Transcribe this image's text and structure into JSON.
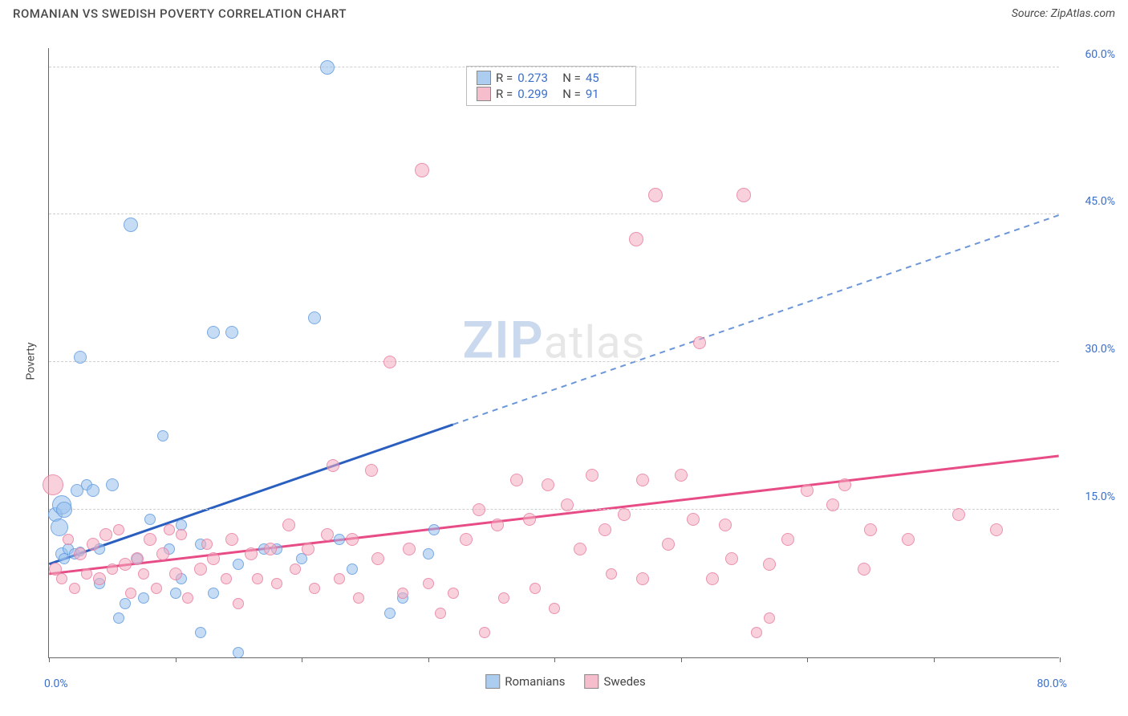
{
  "header": {
    "title": "ROMANIAN VS SWEDISH POVERTY CORRELATION CHART",
    "source": "Source: ZipAtlas.com"
  },
  "chart": {
    "type": "scatter",
    "ylabel": "Poverty",
    "xlim": [
      0,
      80
    ],
    "ylim": [
      0,
      62
    ],
    "xticks": [
      0,
      10,
      20,
      30,
      40,
      50,
      60,
      70,
      80
    ],
    "yticks": [
      15,
      30,
      45,
      60
    ],
    "ytick_labels": [
      "15.0%",
      "30.0%",
      "45.0%",
      "60.0%"
    ],
    "xmin_label": "0.0%",
    "xmax_label": "80.0%",
    "grid_color": "#d0d0d0",
    "axis_color": "#666666",
    "tick_label_color": "#3b6fc9",
    "watermark": {
      "part1": "ZIP",
      "part2": "atlas"
    },
    "series": [
      {
        "name": "Romanians",
        "color_fill": "rgba(151,192,236,0.55)",
        "color_border": "rgba(90,150,220,0.7)",
        "swatch_color": "rgba(151,192,236,0.8)",
        "R": "0.273",
        "N": "45",
        "trend": {
          "x1": 0,
          "y1": 9.5,
          "x2": 80,
          "y2": 45,
          "solid_until_x": 32,
          "color_solid": "#2a5fc0",
          "color_dash": "#6b96d8",
          "width": 3
        },
        "points": [
          {
            "x": 0.5,
            "y": 14.5,
            "r": 9
          },
          {
            "x": 0.8,
            "y": 13.2,
            "r": 11
          },
          {
            "x": 1.0,
            "y": 15.5,
            "r": 12
          },
          {
            "x": 1.2,
            "y": 15.0,
            "r": 10
          },
          {
            "x": 1.0,
            "y": 10.5,
            "r": 8
          },
          {
            "x": 1.2,
            "y": 10.0,
            "r": 7
          },
          {
            "x": 1.5,
            "y": 11.0,
            "r": 7
          },
          {
            "x": 2.0,
            "y": 10.5,
            "r": 7
          },
          {
            "x": 2.2,
            "y": 17.0,
            "r": 8
          },
          {
            "x": 2.5,
            "y": 10.8,
            "r": 6
          },
          {
            "x": 2.5,
            "y": 30.5,
            "r": 8
          },
          {
            "x": 3.0,
            "y": 17.5,
            "r": 7
          },
          {
            "x": 3.5,
            "y": 17.0,
            "r": 8
          },
          {
            "x": 4.0,
            "y": 7.5,
            "r": 7
          },
          {
            "x": 4.0,
            "y": 11.0,
            "r": 7
          },
          {
            "x": 5.0,
            "y": 17.5,
            "r": 8
          },
          {
            "x": 5.5,
            "y": 4.0,
            "r": 7
          },
          {
            "x": 6.0,
            "y": 5.5,
            "r": 7
          },
          {
            "x": 6.5,
            "y": 44.0,
            "r": 9
          },
          {
            "x": 7.0,
            "y": 10.0,
            "r": 7
          },
          {
            "x": 7.5,
            "y": 6.0,
            "r": 7
          },
          {
            "x": 8.0,
            "y": 14.0,
            "r": 7
          },
          {
            "x": 9.0,
            "y": 22.5,
            "r": 7
          },
          {
            "x": 9.5,
            "y": 11.0,
            "r": 7
          },
          {
            "x": 10.0,
            "y": 6.5,
            "r": 7
          },
          {
            "x": 10.5,
            "y": 8.0,
            "r": 7
          },
          {
            "x": 10.5,
            "y": 13.5,
            "r": 7
          },
          {
            "x": 12.0,
            "y": 11.5,
            "r": 7
          },
          {
            "x": 12.0,
            "y": 2.5,
            "r": 7
          },
          {
            "x": 13.0,
            "y": 33.0,
            "r": 8
          },
          {
            "x": 13.0,
            "y": 6.5,
            "r": 7
          },
          {
            "x": 14.5,
            "y": 33.0,
            "r": 8
          },
          {
            "x": 15.0,
            "y": 9.5,
            "r": 7
          },
          {
            "x": 15.0,
            "y": 0.5,
            "r": 7
          },
          {
            "x": 17.0,
            "y": 11.0,
            "r": 7
          },
          {
            "x": 18.0,
            "y": 11.0,
            "r": 7
          },
          {
            "x": 20.0,
            "y": 10.0,
            "r": 7
          },
          {
            "x": 21.0,
            "y": 34.5,
            "r": 8
          },
          {
            "x": 22.0,
            "y": 60.0,
            "r": 9
          },
          {
            "x": 23.0,
            "y": 12.0,
            "r": 7
          },
          {
            "x": 24.0,
            "y": 9.0,
            "r": 7
          },
          {
            "x": 27.0,
            "y": 4.5,
            "r": 7
          },
          {
            "x": 28.0,
            "y": 6.0,
            "r": 7
          },
          {
            "x": 30.0,
            "y": 10.5,
            "r": 7
          },
          {
            "x": 30.5,
            "y": 13.0,
            "r": 7
          }
        ]
      },
      {
        "name": "Swedes",
        "color_fill": "rgba(244,172,192,0.55)",
        "color_border": "rgba(230,120,155,0.7)",
        "swatch_color": "rgba(244,172,192,0.8)",
        "R": "0.299",
        "N": "91",
        "trend": {
          "x1": 0,
          "y1": 8.5,
          "x2": 80,
          "y2": 20.5,
          "solid_until_x": 80,
          "color_solid": "#e84c86",
          "color_dash": "#e84c86",
          "width": 3
        },
        "points": [
          {
            "x": 0.3,
            "y": 17.5,
            "r": 13
          },
          {
            "x": 0.5,
            "y": 9.0,
            "r": 8
          },
          {
            "x": 1.0,
            "y": 8.0,
            "r": 7
          },
          {
            "x": 1.5,
            "y": 12.0,
            "r": 7
          },
          {
            "x": 2.0,
            "y": 7.0,
            "r": 7
          },
          {
            "x": 2.5,
            "y": 10.5,
            "r": 8
          },
          {
            "x": 3.0,
            "y": 8.5,
            "r": 7
          },
          {
            "x": 3.5,
            "y": 11.5,
            "r": 8
          },
          {
            "x": 4.0,
            "y": 8.0,
            "r": 8
          },
          {
            "x": 4.5,
            "y": 12.5,
            "r": 8
          },
          {
            "x": 5.0,
            "y": 9.0,
            "r": 7
          },
          {
            "x": 5.5,
            "y": 13.0,
            "r": 7
          },
          {
            "x": 6.0,
            "y": 9.5,
            "r": 8
          },
          {
            "x": 6.5,
            "y": 6.5,
            "r": 7
          },
          {
            "x": 7.0,
            "y": 10.0,
            "r": 8
          },
          {
            "x": 7.5,
            "y": 8.5,
            "r": 7
          },
          {
            "x": 8.0,
            "y": 12.0,
            "r": 8
          },
          {
            "x": 8.5,
            "y": 7.0,
            "r": 7
          },
          {
            "x": 9.0,
            "y": 10.5,
            "r": 8
          },
          {
            "x": 9.5,
            "y": 13.0,
            "r": 7
          },
          {
            "x": 10.0,
            "y": 8.5,
            "r": 8
          },
          {
            "x": 10.5,
            "y": 12.5,
            "r": 7
          },
          {
            "x": 11.0,
            "y": 6.0,
            "r": 7
          },
          {
            "x": 12.0,
            "y": 9.0,
            "r": 8
          },
          {
            "x": 12.5,
            "y": 11.5,
            "r": 7
          },
          {
            "x": 13.0,
            "y": 10.0,
            "r": 8
          },
          {
            "x": 14.0,
            "y": 8.0,
            "r": 7
          },
          {
            "x": 14.5,
            "y": 12.0,
            "r": 8
          },
          {
            "x": 15.0,
            "y": 5.5,
            "r": 7
          },
          {
            "x": 16.0,
            "y": 10.5,
            "r": 8
          },
          {
            "x": 16.5,
            "y": 8.0,
            "r": 7
          },
          {
            "x": 17.5,
            "y": 11.0,
            "r": 8
          },
          {
            "x": 18.0,
            "y": 7.5,
            "r": 7
          },
          {
            "x": 19.0,
            "y": 13.5,
            "r": 8
          },
          {
            "x": 19.5,
            "y": 9.0,
            "r": 7
          },
          {
            "x": 20.5,
            "y": 11.0,
            "r": 8
          },
          {
            "x": 21.0,
            "y": 7.0,
            "r": 7
          },
          {
            "x": 22.0,
            "y": 12.5,
            "r": 8
          },
          {
            "x": 22.5,
            "y": 19.5,
            "r": 8
          },
          {
            "x": 23.0,
            "y": 8.0,
            "r": 7
          },
          {
            "x": 24.0,
            "y": 12.0,
            "r": 8
          },
          {
            "x": 24.5,
            "y": 6.0,
            "r": 7
          },
          {
            "x": 25.5,
            "y": 19.0,
            "r": 8
          },
          {
            "x": 26.0,
            "y": 10.0,
            "r": 8
          },
          {
            "x": 27.0,
            "y": 30.0,
            "r": 8
          },
          {
            "x": 28.0,
            "y": 6.5,
            "r": 7
          },
          {
            "x": 28.5,
            "y": 11.0,
            "r": 8
          },
          {
            "x": 29.5,
            "y": 49.5,
            "r": 9
          },
          {
            "x": 30.0,
            "y": 7.5,
            "r": 7
          },
          {
            "x": 31.0,
            "y": 4.5,
            "r": 7
          },
          {
            "x": 32.0,
            "y": 6.5,
            "r": 7
          },
          {
            "x": 33.0,
            "y": 12.0,
            "r": 8
          },
          {
            "x": 34.0,
            "y": 15.0,
            "r": 8
          },
          {
            "x": 34.5,
            "y": 2.5,
            "r": 7
          },
          {
            "x": 35.5,
            "y": 13.5,
            "r": 8
          },
          {
            "x": 36.0,
            "y": 6.0,
            "r": 7
          },
          {
            "x": 37.0,
            "y": 18.0,
            "r": 8
          },
          {
            "x": 38.0,
            "y": 14.0,
            "r": 8
          },
          {
            "x": 38.5,
            "y": 7.0,
            "r": 7
          },
          {
            "x": 39.5,
            "y": 17.5,
            "r": 8
          },
          {
            "x": 40.0,
            "y": 5.0,
            "r": 7
          },
          {
            "x": 41.0,
            "y": 15.5,
            "r": 8
          },
          {
            "x": 42.0,
            "y": 11.0,
            "r": 8
          },
          {
            "x": 43.0,
            "y": 18.5,
            "r": 8
          },
          {
            "x": 44.0,
            "y": 13.0,
            "r": 8
          },
          {
            "x": 44.5,
            "y": 8.5,
            "r": 7
          },
          {
            "x": 45.5,
            "y": 14.5,
            "r": 8
          },
          {
            "x": 46.5,
            "y": 42.5,
            "r": 9
          },
          {
            "x": 47.0,
            "y": 8.0,
            "r": 8
          },
          {
            "x": 47.0,
            "y": 18.0,
            "r": 8
          },
          {
            "x": 48.0,
            "y": 47.0,
            "r": 9
          },
          {
            "x": 49.0,
            "y": 11.5,
            "r": 8
          },
          {
            "x": 50.0,
            "y": 18.5,
            "r": 8
          },
          {
            "x": 51.0,
            "y": 14.0,
            "r": 8
          },
          {
            "x": 51.5,
            "y": 32.0,
            "r": 8
          },
          {
            "x": 52.5,
            "y": 8.0,
            "r": 8
          },
          {
            "x": 53.5,
            "y": 13.5,
            "r": 8
          },
          {
            "x": 54.0,
            "y": 10.0,
            "r": 8
          },
          {
            "x": 55.0,
            "y": 47.0,
            "r": 9
          },
          {
            "x": 56.0,
            "y": 2.5,
            "r": 7
          },
          {
            "x": 57.0,
            "y": 4.0,
            "r": 7
          },
          {
            "x": 57.0,
            "y": 9.5,
            "r": 8
          },
          {
            "x": 58.5,
            "y": 12.0,
            "r": 8
          },
          {
            "x": 60.0,
            "y": 17.0,
            "r": 8
          },
          {
            "x": 62.0,
            "y": 15.5,
            "r": 8
          },
          {
            "x": 63.0,
            "y": 17.5,
            "r": 8
          },
          {
            "x": 64.5,
            "y": 9.0,
            "r": 8
          },
          {
            "x": 65.0,
            "y": 13.0,
            "r": 8
          },
          {
            "x": 68.0,
            "y": 12.0,
            "r": 8
          },
          {
            "x": 72.0,
            "y": 14.5,
            "r": 8
          },
          {
            "x": 75.0,
            "y": 13.0,
            "r": 8
          }
        ]
      }
    ],
    "stats_labels": {
      "R": "R =",
      "N": "N ="
    },
    "legend": {
      "items": [
        "Romanians",
        "Swedes"
      ]
    }
  }
}
